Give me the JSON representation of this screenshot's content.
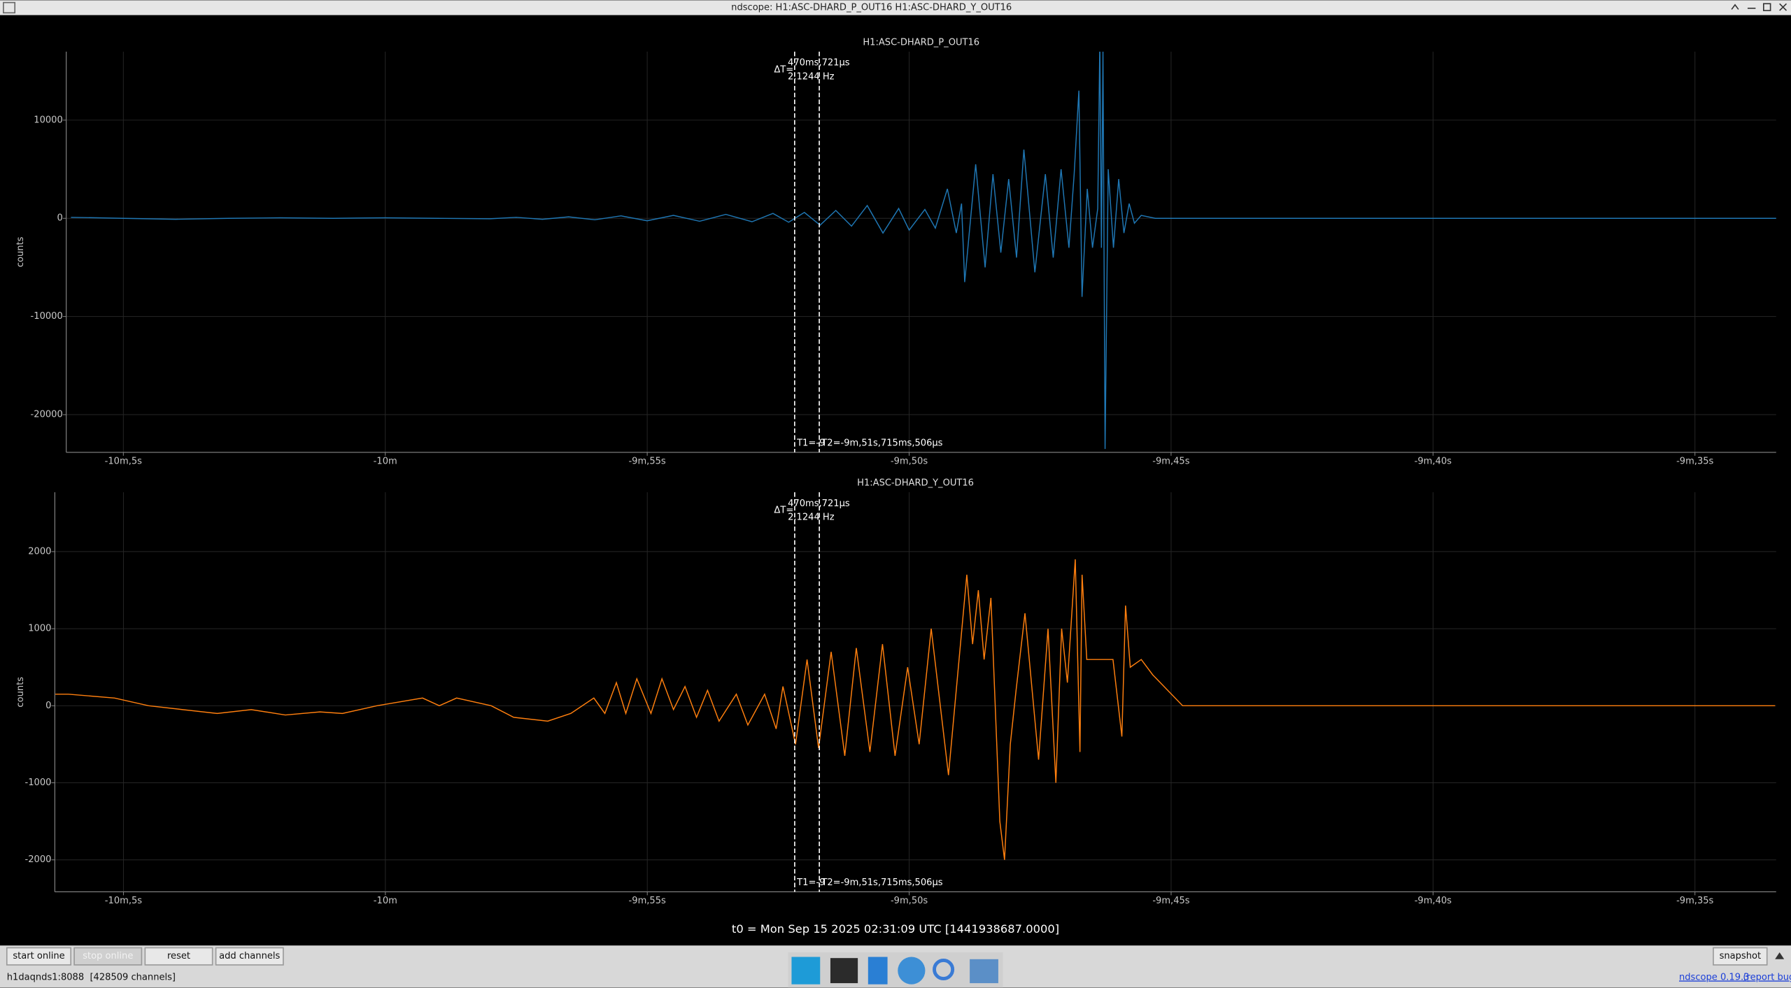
{
  "window_title": "ndscope: H1:ASC-DHARD_P_OUT16 H1:ASC-DHARD_Y_OUT16",
  "chart_data": [
    {
      "type": "line",
      "title": "H1:ASC-DHARD_P_OUT16",
      "ylabel": "counts",
      "grid": true,
      "x": [
        -606,
        -605,
        -604,
        -603,
        -602,
        -601,
        -600,
        -599,
        -598,
        -597.5,
        -597,
        -596.5,
        -596,
        -595.5,
        -595,
        -594.5,
        -594,
        -593.5,
        -593,
        -592.6,
        -592.3,
        -592.0,
        -591.7,
        -591.4,
        -591.1,
        -590.8,
        -590.5,
        -590.2,
        -590.0,
        -589.7,
        -589.5,
        -589.27,
        -589.1,
        -589.0,
        -588.94,
        -588.73,
        -588.55,
        -588.4,
        -588.25,
        -588.1,
        -587.95,
        -587.81,
        -587.6,
        -587.4,
        -587.25,
        -587.1,
        -586.95,
        -586.85,
        -586.76,
        -586.7,
        -586.6,
        -586.5,
        -586.4,
        -586.36,
        -586.33,
        -586.3,
        -586.26,
        -586.2,
        -586.1,
        -586.0,
        -585.9,
        -585.8,
        -585.7,
        -585.57,
        -585.3,
        -580,
        -573.4
      ],
      "series": [
        {
          "color": "#1f77b4",
          "values": [
            100,
            0,
            -100,
            0,
            50,
            0,
            50,
            0,
            -50,
            100,
            -100,
            150,
            -150,
            250,
            -250,
            300,
            -300,
            400,
            -350,
            500,
            -400,
            600,
            -700,
            800,
            -800,
            1300,
            -1500,
            1000,
            -1200,
            900,
            -1000,
            3000,
            -1500,
            1500,
            -6500,
            5500,
            -5000,
            4500,
            -3500,
            4000,
            -4000,
            7000,
            -5500,
            4500,
            -4000,
            5000,
            -3000,
            4500,
            13000,
            -8000,
            3000,
            -3000,
            1000,
            18000,
            -3000,
            17000,
            -23500,
            5000,
            -3000,
            4000,
            -1500,
            1500,
            -500,
            300,
            0,
            0,
            0
          ]
        }
      ],
      "xlim": [
        -606.09,
        -573.45
      ],
      "ylim": [
        -23837,
        16977
      ],
      "xticks": [
        {
          "value": -605,
          "label": "-10m,5s"
        },
        {
          "value": -600,
          "label": "-10m"
        },
        {
          "value": -595,
          "label": "-9m,55s"
        },
        {
          "value": -590,
          "label": "-9m,50s"
        },
        {
          "value": -585,
          "label": "-9m,45s"
        },
        {
          "value": -580,
          "label": "-9m,40s"
        },
        {
          "value": -575,
          "label": "-9m,35s"
        }
      ],
      "yticks": [
        10000,
        0,
        -10000,
        -20000
      ],
      "cursors": {
        "t1": {
          "value": -592.186,
          "label": "T1=-9"
        },
        "t2": {
          "value": -591.7155,
          "label": "T2=-9m,51s,715ms,506μs"
        },
        "delta_label": "ΔT=",
        "delta": "470ms,721μs",
        "freq": "2.1244 Hz"
      }
    },
    {
      "type": "line",
      "title": "H1:ASC-DHARD_Y_OUT16",
      "ylabel": "counts",
      "grid": true,
      "x": [
        -606.3,
        -606.05,
        -605.17,
        -604.52,
        -603.87,
        -603.21,
        -602.56,
        -601.91,
        -601.25,
        -600.82,
        -600.16,
        -599.29,
        -598.97,
        -598.64,
        -597.98,
        -597.55,
        -596.9,
        -596.46,
        -596.02,
        -595.81,
        -595.59,
        -595.41,
        -595.2,
        -594.93,
        -594.72,
        -594.5,
        -594.28,
        -594.06,
        -593.85,
        -593.63,
        -593.3,
        -593.08,
        -592.76,
        -592.54,
        -592.41,
        -592.17,
        -591.95,
        -591.73,
        -591.49,
        -591.23,
        -591.01,
        -590.75,
        -590.51,
        -590.27,
        -590.03,
        -589.81,
        -589.58,
        -589.25,
        -588.9,
        -588.79,
        -588.68,
        -588.57,
        -588.44,
        -588.27,
        -588.18,
        -588.07,
        -587.96,
        -587.79,
        -587.53,
        -587.35,
        -587.2,
        -587.09,
        -586.98,
        -586.83,
        -586.74,
        -586.7,
        -586.61,
        -586.44,
        -586.11,
        -585.94,
        -585.87,
        -585.78,
        -585.57,
        -585.35,
        -584.78,
        -573.47
      ],
      "series": [
        {
          "color": "#ff7f0e",
          "values": [
            150,
            150,
            100,
            0,
            -50,
            -100,
            -50,
            -120,
            -80,
            -100,
            0,
            100,
            0,
            100,
            0,
            -150,
            -200,
            -100,
            100,
            -100,
            300,
            -100,
            350,
            -100,
            350,
            -50,
            250,
            -150,
            200,
            -200,
            150,
            -250,
            150,
            -300,
            250,
            -500,
            600,
            -550,
            700,
            -650,
            750,
            -600,
            800,
            -650,
            500,
            -500,
            1000,
            -900,
            1700,
            800,
            1500,
            600,
            1400,
            -1500,
            -2000,
            -500,
            200,
            1200,
            -700,
            1000,
            -1000,
            1000,
            300,
            1900,
            -600,
            1700,
            600,
            600,
            600,
            -400,
            1300,
            500,
            600,
            400,
            0,
            0
          ]
        }
      ],
      "xlim": [
        -606.31,
        -573.45
      ],
      "ylim": [
        -2415,
        2770
      ],
      "xticks": [
        {
          "value": -605,
          "label": "-10m,5s"
        },
        {
          "value": -600,
          "label": "-10m"
        },
        {
          "value": -595,
          "label": "-9m,55s"
        },
        {
          "value": -590,
          "label": "-9m,50s"
        },
        {
          "value": -585,
          "label": "-9m,45s"
        },
        {
          "value": -580,
          "label": "-9m,40s"
        },
        {
          "value": -575,
          "label": "-9m,35s"
        }
      ],
      "yticks": [
        2000,
        1000,
        0,
        -1000,
        -2000
      ],
      "cursors": {
        "t1": {
          "value": -592.186,
          "label": "T1=-9"
        },
        "t2": {
          "value": -591.7155,
          "label": "T2=-9m,51s,715ms,506μs"
        },
        "delta_label": "ΔT=",
        "delta": "470ms,721μs",
        "freq": "2.1244 Hz"
      }
    }
  ],
  "t0_label": "t0 = Mon Sep 15 2025 02:31:09 UTC [1441938687.0000]",
  "buttons": [
    "start online",
    "stop online",
    "reset",
    "add channels"
  ],
  "snapshot": "snapshot",
  "status": "h1daqnds1:8088  [428509 channels]",
  "version_link": "ndscope 0.19.3",
  "report_link": "(report bug)"
}
